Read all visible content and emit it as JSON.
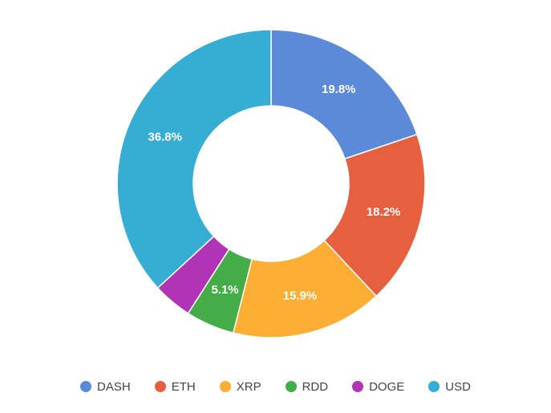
{
  "chart_data": {
    "type": "pie",
    "variant": "donut",
    "title": "",
    "categories": [
      "DASH",
      "ETH",
      "XRP",
      "RDD",
      "DOGE",
      "USD"
    ],
    "values": [
      19.8,
      18.2,
      15.9,
      5.1,
      4.1,
      36.8
    ],
    "labels": [
      "19.8%",
      "18.2%",
      "15.9%",
      "5.1%",
      "",
      "36.8%"
    ],
    "colors": [
      "#5b8ad8",
      "#e6603f",
      "#fcad33",
      "#45ad48",
      "#b034b5",
      "#36aed4"
    ],
    "legend_position": "bottom"
  }
}
